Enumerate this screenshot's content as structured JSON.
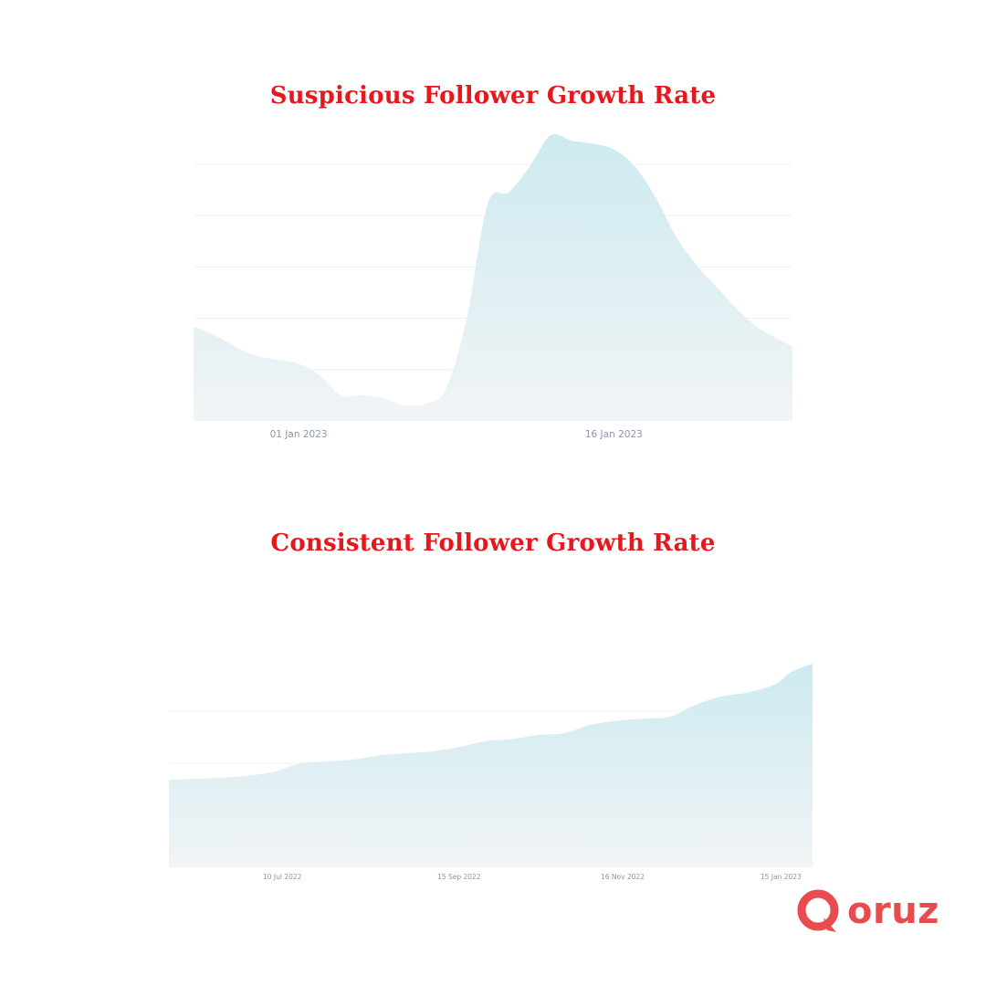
{
  "chart_data": [
    {
      "type": "area",
      "title": "Suspicious Follower Growth Rate",
      "x_ticks": [
        {
          "label": "01 Jan 2023",
          "x": 5
        },
        {
          "label": "16 Jan 2023",
          "x": 20
        }
      ],
      "xlim": [
        0,
        28.5
      ],
      "ylim": [
        0,
        100
      ],
      "grid": true,
      "fill_color": "#cdeaf0",
      "points": [
        {
          "x": 0,
          "y": 33
        },
        {
          "x": 1,
          "y": 30
        },
        {
          "x": 2.5,
          "y": 24
        },
        {
          "x": 3.5,
          "y": 22
        },
        {
          "x": 5,
          "y": 20
        },
        {
          "x": 6,
          "y": 16
        },
        {
          "x": 7,
          "y": 9
        },
        {
          "x": 8,
          "y": 9
        },
        {
          "x": 9,
          "y": 8
        },
        {
          "x": 10,
          "y": 5.5
        },
        {
          "x": 11,
          "y": 6
        },
        {
          "x": 12,
          "y": 11
        },
        {
          "x": 13,
          "y": 36
        },
        {
          "x": 14,
          "y": 76
        },
        {
          "x": 15,
          "y": 80
        },
        {
          "x": 16,
          "y": 89
        },
        {
          "x": 17,
          "y": 100
        },
        {
          "x": 18,
          "y": 98
        },
        {
          "x": 19,
          "y": 97
        },
        {
          "x": 20,
          "y": 95
        },
        {
          "x": 21,
          "y": 89
        },
        {
          "x": 22,
          "y": 78
        },
        {
          "x": 23,
          "y": 64
        },
        {
          "x": 24,
          "y": 54
        },
        {
          "x": 25,
          "y": 46
        },
        {
          "x": 26,
          "y": 38
        },
        {
          "x": 27,
          "y": 32
        },
        {
          "x": 28.5,
          "y": 26
        }
      ]
    },
    {
      "type": "area",
      "title": "Consistent Follower Growth Rate",
      "x_ticks": [
        {
          "label": "10 Jul 2022",
          "x": 43
        },
        {
          "label": "15 Sep 2022",
          "x": 110
        },
        {
          "label": "16 Nov 2022",
          "x": 172
        },
        {
          "label": "15 Jan 2023",
          "x": 232
        }
      ],
      "xlim": [
        0,
        244
      ],
      "ylim": [
        0,
        100
      ],
      "grid": true,
      "fill_color": "#cdeaf0",
      "points": [
        {
          "x": 0,
          "y": 43
        },
        {
          "x": 10,
          "y": 43.5
        },
        {
          "x": 20,
          "y": 44
        },
        {
          "x": 30,
          "y": 45
        },
        {
          "x": 40,
          "y": 47
        },
        {
          "x": 50,
          "y": 51
        },
        {
          "x": 60,
          "y": 52
        },
        {
          "x": 70,
          "y": 53
        },
        {
          "x": 80,
          "y": 55
        },
        {
          "x": 90,
          "y": 56
        },
        {
          "x": 100,
          "y": 57
        },
        {
          "x": 110,
          "y": 59
        },
        {
          "x": 120,
          "y": 62
        },
        {
          "x": 130,
          "y": 63
        },
        {
          "x": 140,
          "y": 65
        },
        {
          "x": 150,
          "y": 66
        },
        {
          "x": 160,
          "y": 70
        },
        {
          "x": 170,
          "y": 72
        },
        {
          "x": 180,
          "y": 73
        },
        {
          "x": 190,
          "y": 74
        },
        {
          "x": 200,
          "y": 80
        },
        {
          "x": 210,
          "y": 84
        },
        {
          "x": 220,
          "y": 86
        },
        {
          "x": 230,
          "y": 90
        },
        {
          "x": 236,
          "y": 96
        },
        {
          "x": 244,
          "y": 100
        }
      ]
    }
  ],
  "logo": {
    "text": "oruz",
    "color": "#e84c4f",
    "icon": "magnifier-q-icon"
  }
}
